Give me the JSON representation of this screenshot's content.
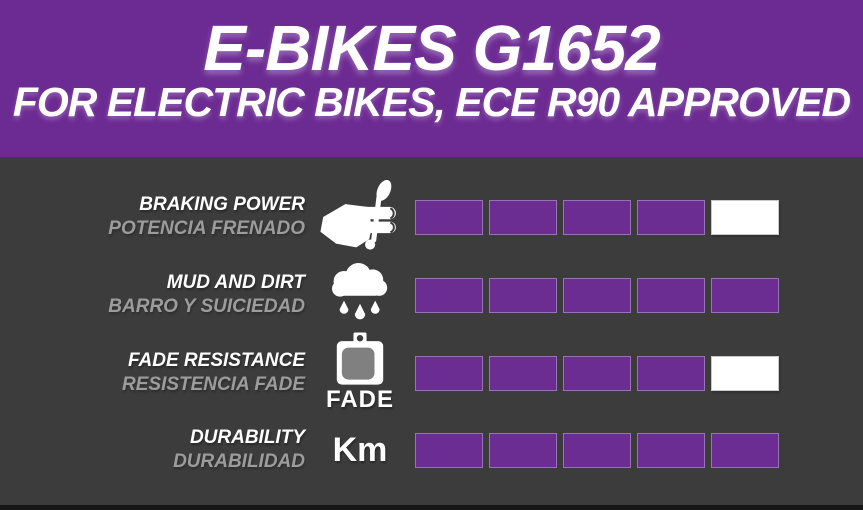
{
  "header": {
    "title": "E-BIKES G1652",
    "subtitle": "FOR ELECTRIC BIKES, ECE R90 APPROVED"
  },
  "colors": {
    "purple": "#6C2B92",
    "bar_purple": "#6B2D92",
    "bar_border": "#9772B4",
    "background": "#3C3C3C",
    "label_en": "#FFFFFF",
    "label_es": "#9C9C9C",
    "empty_bar": "#FFFFFF"
  },
  "chart_data": {
    "type": "bar",
    "title": "E-BIKES G1652",
    "subtitle": "FOR ELECTRIC BIKES, ECE R90 APPROVED",
    "max_rating": 5,
    "legend_position": "none",
    "rows": [
      {
        "label_en": "BRAKING POWER",
        "label_es": "POTENCIA FRENADO",
        "icon": "brake-lever-hand-icon",
        "icon_caption": "",
        "value": 4
      },
      {
        "label_en": "MUD AND DIRT",
        "label_es": "BARRO Y SUICIEDAD",
        "icon": "rain-cloud-icon",
        "icon_caption": "",
        "value": 5
      },
      {
        "label_en": "FADE RESISTANCE",
        "label_es": "RESISTENCIA FADE",
        "icon": "brake-pad-icon",
        "icon_caption": "FADE",
        "value": 4
      },
      {
        "label_en": "DURABILITY",
        "label_es": "DURABILIDAD",
        "icon": "km-icon",
        "icon_caption": "Km",
        "value": 5
      }
    ]
  }
}
